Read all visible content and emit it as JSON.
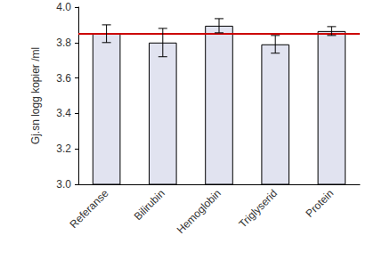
{
  "chart_data": {
    "type": "bar",
    "y_label": "Gj.sn logg kopier /ml",
    "categories": [
      "Referanse",
      "Bilirubin",
      "Hemoglobin",
      "Triglyserid",
      "Protein"
    ],
    "values": [
      3.85,
      3.8,
      3.895,
      3.79,
      3.865
    ],
    "errors": [
      0.05,
      0.08,
      0.04,
      0.05,
      0.025
    ],
    "color": "#e1e3f0",
    "reference_line": {
      "value": 3.855,
      "color": "#cc0000"
    },
    "ylim": [
      3.0,
      4.0
    ],
    "yticks": [
      {
        "value": 3.0,
        "label": "3.0"
      },
      {
        "value": 3.2,
        "label": "3.2"
      },
      {
        "value": 3.4,
        "label": "3.4"
      },
      {
        "value": 3.6,
        "label": "3.6"
      },
      {
        "value": 3.8,
        "label": "3.8"
      },
      {
        "value": 4.0,
        "label": "4.0"
      }
    ],
    "grid": false
  }
}
